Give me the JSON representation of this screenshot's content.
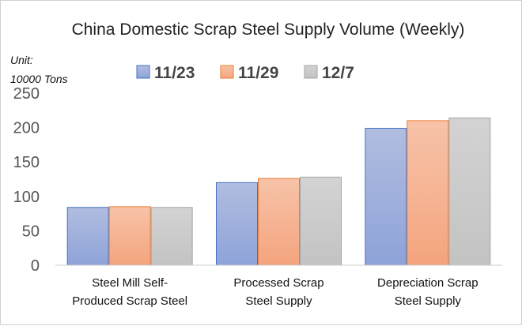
{
  "chart_data": {
    "type": "bar",
    "title": "China Domestic Scrap Steel Supply Volume (Weekly)",
    "unit_label": [
      "Unit:",
      "10000 Tons"
    ],
    "xlabel": "",
    "ylabel": "",
    "ylim": [
      0,
      250
    ],
    "yticks": [
      0,
      50,
      100,
      150,
      200,
      250
    ],
    "grid": false,
    "legend_position": "top",
    "categories": [
      [
        "Steel Mill Self-",
        "Produced Scrap Steel"
      ],
      [
        "Processed Scrap",
        "Steel Supply"
      ],
      [
        "Depreciation Scrap",
        "Steel Supply"
      ]
    ],
    "series": [
      {
        "name": "11/23",
        "values": [
          84,
          120,
          199
        ],
        "color": "#8ea3d9",
        "color_top": "#b1bde0",
        "border": "#4472c4"
      },
      {
        "name": "11/29",
        "values": [
          85,
          126,
          210
        ],
        "color": "#f4a47e",
        "color_top": "#f7c3a8",
        "border": "#ed7d31"
      },
      {
        "name": "12/7",
        "values": [
          84,
          128,
          214
        ],
        "color": "#c3c3c3",
        "color_top": "#d3d3d3",
        "border": "#a5a5a5"
      }
    ]
  }
}
